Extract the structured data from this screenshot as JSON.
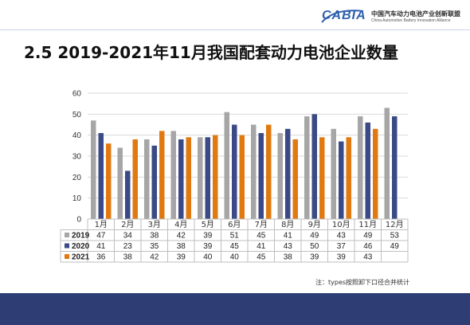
{
  "header": {
    "logo_text": "CABIA",
    "org_name_cn": "中国汽车动力电池产业创新联盟",
    "org_name_en": "China Automotive Battery Innovation Alliance"
  },
  "title": "2.5 2019-2021年11月我国配套动力电池企业数量",
  "note": "注：types按照卸下口径合并统计",
  "colors": {
    "2019": "#a6a6a6",
    "2020": "#3b4a86",
    "2021": "#e07a10",
    "footer": "#2e3d73"
  },
  "chart_data": {
    "type": "bar",
    "title": "",
    "xlabel": "",
    "ylabel": "",
    "ylim": [
      0,
      60
    ],
    "yticks": [
      0,
      10,
      20,
      30,
      40,
      50,
      60
    ],
    "grid": true,
    "legend": "data-table-left",
    "categories": [
      "1月",
      "2月",
      "3月",
      "4月",
      "5月",
      "6月",
      "7月",
      "8月",
      "9月",
      "10月",
      "11月",
      "12月"
    ],
    "series": [
      {
        "name": "2019",
        "values": [
          47,
          34,
          38,
          42,
          39,
          51,
          45,
          41,
          49,
          43,
          49,
          53
        ]
      },
      {
        "name": "2020",
        "values": [
          41,
          23,
          35,
          38,
          39,
          45,
          41,
          43,
          50,
          37,
          46,
          49
        ]
      },
      {
        "name": "2021",
        "values": [
          36,
          38,
          42,
          39,
          40,
          40,
          45,
          38,
          39,
          39,
          43,
          null
        ]
      }
    ]
  }
}
